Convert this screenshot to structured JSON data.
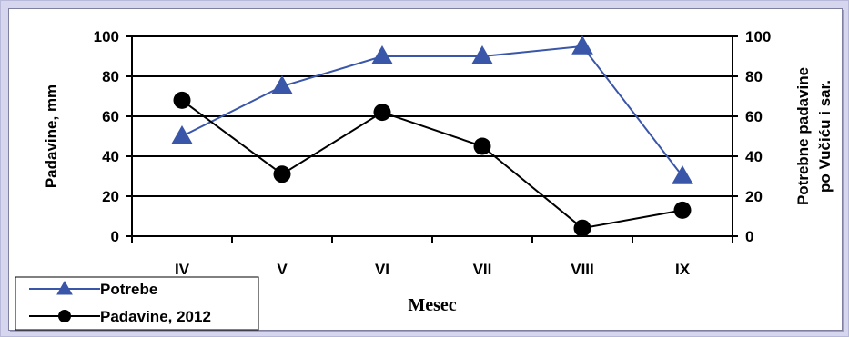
{
  "chart_data": {
    "type": "line",
    "categories": [
      "IV",
      "V",
      "VI",
      "VII",
      "VIII",
      "IX"
    ],
    "series": [
      {
        "name": "Potrebe",
        "values": [
          50,
          75,
          90,
          90,
          95,
          30
        ],
        "axis": "right",
        "color": "#3a56a8",
        "marker": "triangle"
      },
      {
        "name": "Padavine, 2012",
        "values": [
          68,
          31,
          62,
          45,
          4,
          13
        ],
        "axis": "left",
        "color": "#000000",
        "marker": "circle"
      }
    ],
    "xlabel": "Mesec",
    "ylabel_left": "Padavine, mm",
    "ylabel_right_lines": [
      "Potrebne padavine",
      "po Vučiću i sar."
    ],
    "ylim": [
      0,
      100
    ],
    "yticks": [
      0,
      20,
      40,
      60,
      80,
      100
    ],
    "grid": true,
    "legend_position": "bottom-left"
  }
}
